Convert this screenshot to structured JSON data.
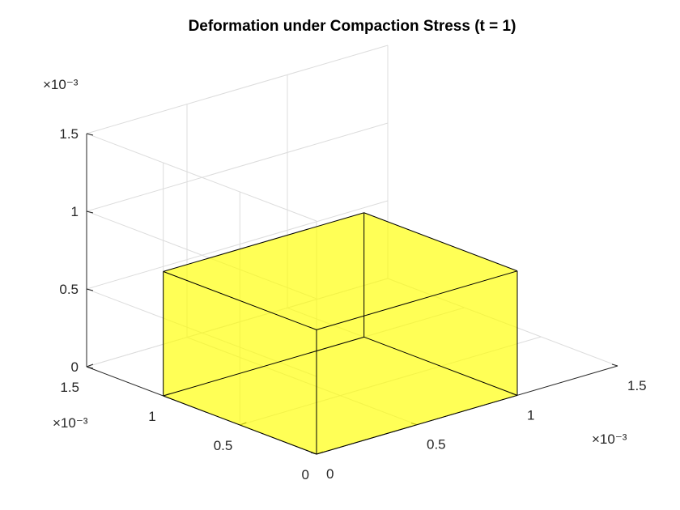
{
  "chart_data": {
    "type": "3d-surface",
    "title": "Deformation under Compaction Stress (t = 1)",
    "xlabel": "",
    "ylabel": "",
    "zlabel": "",
    "xlim": [
      0,
      0.0015
    ],
    "ylim": [
      0,
      0.0015
    ],
    "zlim": [
      0,
      0.0015
    ],
    "x_ticks": [
      "0",
      "0.5",
      "1",
      "1.5"
    ],
    "y_ticks": [
      "0",
      "0.5",
      "1",
      "1.5"
    ],
    "z_ticks": [
      "0",
      "0.5",
      "1",
      "1.5"
    ],
    "x_exponent_label": "×10⁻³",
    "y_exponent_label": "×10⁻³",
    "z_exponent_label": "×10⁻³",
    "grid": true,
    "box": {
      "x": [
        0,
        0.001
      ],
      "y": [
        0,
        0.001
      ],
      "z": [
        0,
        0.0008
      ],
      "face_color": "#ffff00",
      "edge_color": "#000000",
      "face_alpha": 0.7
    }
  }
}
